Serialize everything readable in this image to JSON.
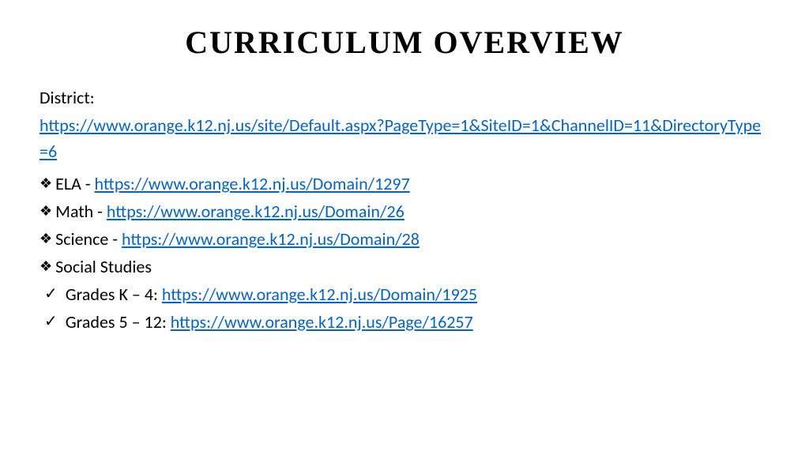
{
  "title": "CURRICULUM OVERVIEW",
  "district": {
    "label": "District:",
    "url": "https://www.orange.k12.nj.us/site/Default.aspx?PageType=1&SiteID=1&ChannelID=11&DirectoryType=6"
  },
  "subjects": [
    {
      "label": "ELA - ",
      "url": "https://www.orange.k12.nj.us/Domain/1297"
    },
    {
      "label": "Math - ",
      "url": "https://www.orange.k12.nj.us/Domain/26"
    },
    {
      "label": "Science - ",
      "url": "https://www.orange.k12.nj.us/Domain/28"
    },
    {
      "label": "Social Studies",
      "url": ""
    }
  ],
  "social_studies_items": [
    {
      "label": "Grades K – 4: ",
      "url": "https://www.orange.k12.nj.us/Domain/1925"
    },
    {
      "label": "Grades 5 – 12: ",
      "url": "https://www.orange.k12.nj.us/Page/16257"
    }
  ],
  "colors": {
    "link": "#0563c1",
    "text": "#000000",
    "background": "#ffffff"
  },
  "typography": {
    "title_fontsize": 40,
    "body_fontsize": 22
  }
}
